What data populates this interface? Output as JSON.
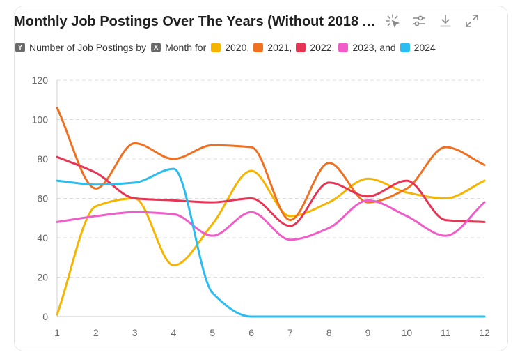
{
  "title": "Monthly Job Postings Over The Years (Without 2018 An...",
  "toolbar": [
    "select-icon",
    "filter-settings-icon",
    "download-icon",
    "expand-icon"
  ],
  "legend": {
    "y_badge": "Y",
    "y_text": "Number of Job Postings by",
    "x_badge": "X",
    "x_text": "Month for",
    "entries": [
      {
        "label": "2020,",
        "color": "#f5b400"
      },
      {
        "label": "2021,",
        "color": "#f07022"
      },
      {
        "label": "2022,",
        "color": "#e63554"
      },
      {
        "label": "2023, and",
        "color": "#f05cc8"
      },
      {
        "label": "2024",
        "color": "#2bbcf0"
      }
    ]
  },
  "chart_data": {
    "type": "line",
    "x": [
      1,
      2,
      3,
      4,
      5,
      6,
      7,
      8,
      9,
      10,
      11,
      12
    ],
    "ylim": [
      0,
      120
    ],
    "yticks": [
      0,
      20,
      40,
      60,
      80,
      100,
      120
    ],
    "grid": true,
    "legend_position": "top-left",
    "series": [
      {
        "name": "2020",
        "color": "#f5b400",
        "values": [
          1,
          56,
          60,
          26,
          47,
          74,
          51,
          58,
          70,
          63,
          60,
          69
        ]
      },
      {
        "name": "2021",
        "color": "#f07022",
        "values": [
          106,
          65,
          88,
          80,
          87,
          86,
          49,
          78,
          58,
          65,
          86,
          77
        ]
      },
      {
        "name": "2022",
        "color": "#e63554",
        "values": [
          81,
          73,
          60,
          59,
          58,
          60,
          46,
          68,
          61,
          69,
          49,
          48
        ]
      },
      {
        "name": "2023",
        "color": "#f05cc8",
        "values": [
          48,
          51,
          53,
          52,
          41,
          53,
          39,
          45,
          59,
          51,
          41,
          58
        ]
      },
      {
        "name": "2024",
        "color": "#2bbcf0",
        "values": [
          69,
          67,
          68,
          75,
          12,
          0,
          0,
          0,
          0,
          0,
          0,
          0
        ]
      }
    ]
  }
}
